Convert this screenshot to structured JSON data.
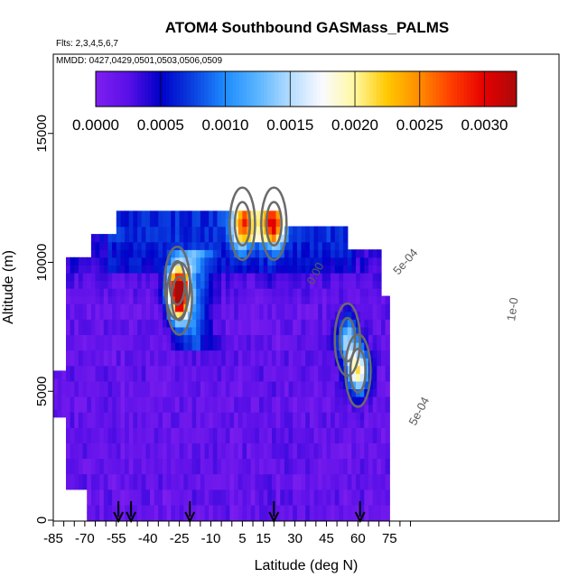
{
  "chart_data": {
    "type": "heatmap",
    "title": "ATOM4 Southbound GASMass_PALMS",
    "subtitle_flights": "Flts: 2,3,4,5,6,7",
    "subtitle_dates": "MMDD: 0427,0429,0501,0503,0506,0509",
    "xlabel": "Latitude (deg N)",
    "ylabel": "Altitude (m)",
    "xlim": [
      -85,
      85
    ],
    "ylim": [
      0,
      17000
    ],
    "x_ticks": [
      -85,
      -70,
      -55,
      -40,
      -25,
      -10,
      5,
      15,
      30,
      45,
      60,
      75
    ],
    "x_tick_labels": [
      "-85",
      "-70",
      "-55",
      "-40",
      "-25",
      "-10",
      "5",
      "15",
      "30",
      "45",
      "60",
      "75"
    ],
    "y_ticks": [
      0,
      5000,
      10000,
      15000
    ],
    "y_tick_labels": [
      "0",
      "5000",
      "10000",
      "15000"
    ],
    "colorbar": {
      "min": 0,
      "max": 0.0032,
      "ticks": [
        "0.0000",
        "0.0005",
        "0.0010",
        "0.0015",
        "0.0020",
        "0.0025",
        "0.0030"
      ],
      "tick_values": [
        0,
        0.0005,
        0.001,
        0.0015,
        0.002,
        0.0025,
        0.003
      ],
      "colors": [
        "#7f1ff0",
        "#5a10e8",
        "#0000c8",
        "#0a40e0",
        "#1e8cff",
        "#5ab4ff",
        "#b4dcff",
        "#fafaff",
        "#fff8a0",
        "#ffc800",
        "#ff8c00",
        "#ff3c00",
        "#e60000",
        "#aa0a0a"
      ]
    },
    "contour_labels": [
      "0.00",
      "5e-04",
      "5e-04",
      "1e-0"
    ],
    "profile_markers_lat": [
      -54,
      -48,
      -20,
      20,
      61
    ],
    "hotspots": [
      {
        "lat": -25,
        "alt": 8600,
        "value": 0.0025
      },
      {
        "lat": -26,
        "alt": 9200,
        "value": 0.0014
      },
      {
        "lat": 5,
        "alt": 11500,
        "value": 0.0016
      },
      {
        "lat": 20,
        "alt": 11500,
        "value": 0.0019
      },
      {
        "lat": 55,
        "alt": 7000,
        "value": 0.0012
      },
      {
        "lat": 60,
        "alt": 5800,
        "value": 0.0018
      }
    ]
  }
}
